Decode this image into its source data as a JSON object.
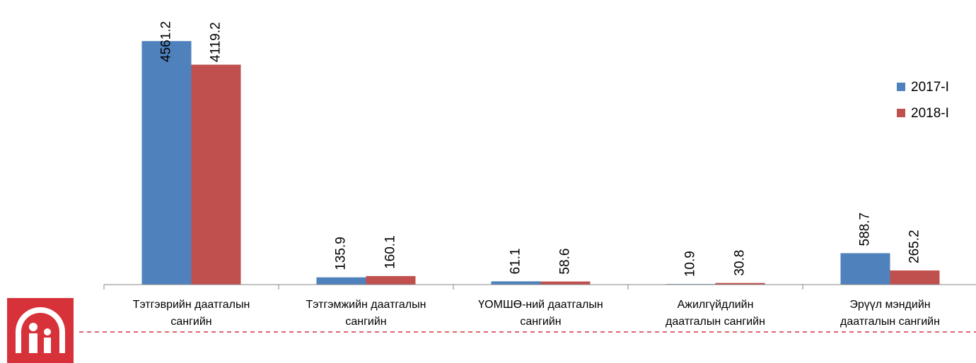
{
  "chart_data": {
    "type": "bar",
    "categories": [
      "Тэтгэврийн даатгалын\nсангийн",
      "Тэтгэмжийн даатгалын\nсангийн",
      "ҮОМШӨ-ний даатгалын\nсангийн",
      "Ажилгүйдлийн\nдаатгалын сангийн",
      "Эрүүл мэндийн\nдаатгалын сангийн"
    ],
    "series": [
      {
        "name": "2017-I",
        "color": "#4f81bd",
        "values": [
          4561.2,
          135.9,
          61.1,
          10.9,
          588.7
        ]
      },
      {
        "name": "2018-I",
        "color": "#c0504d",
        "values": [
          4119.2,
          160.1,
          58.6,
          30.8,
          265.2
        ]
      }
    ],
    "ylim": [
      0,
      5000
    ],
    "legend": "right"
  }
}
